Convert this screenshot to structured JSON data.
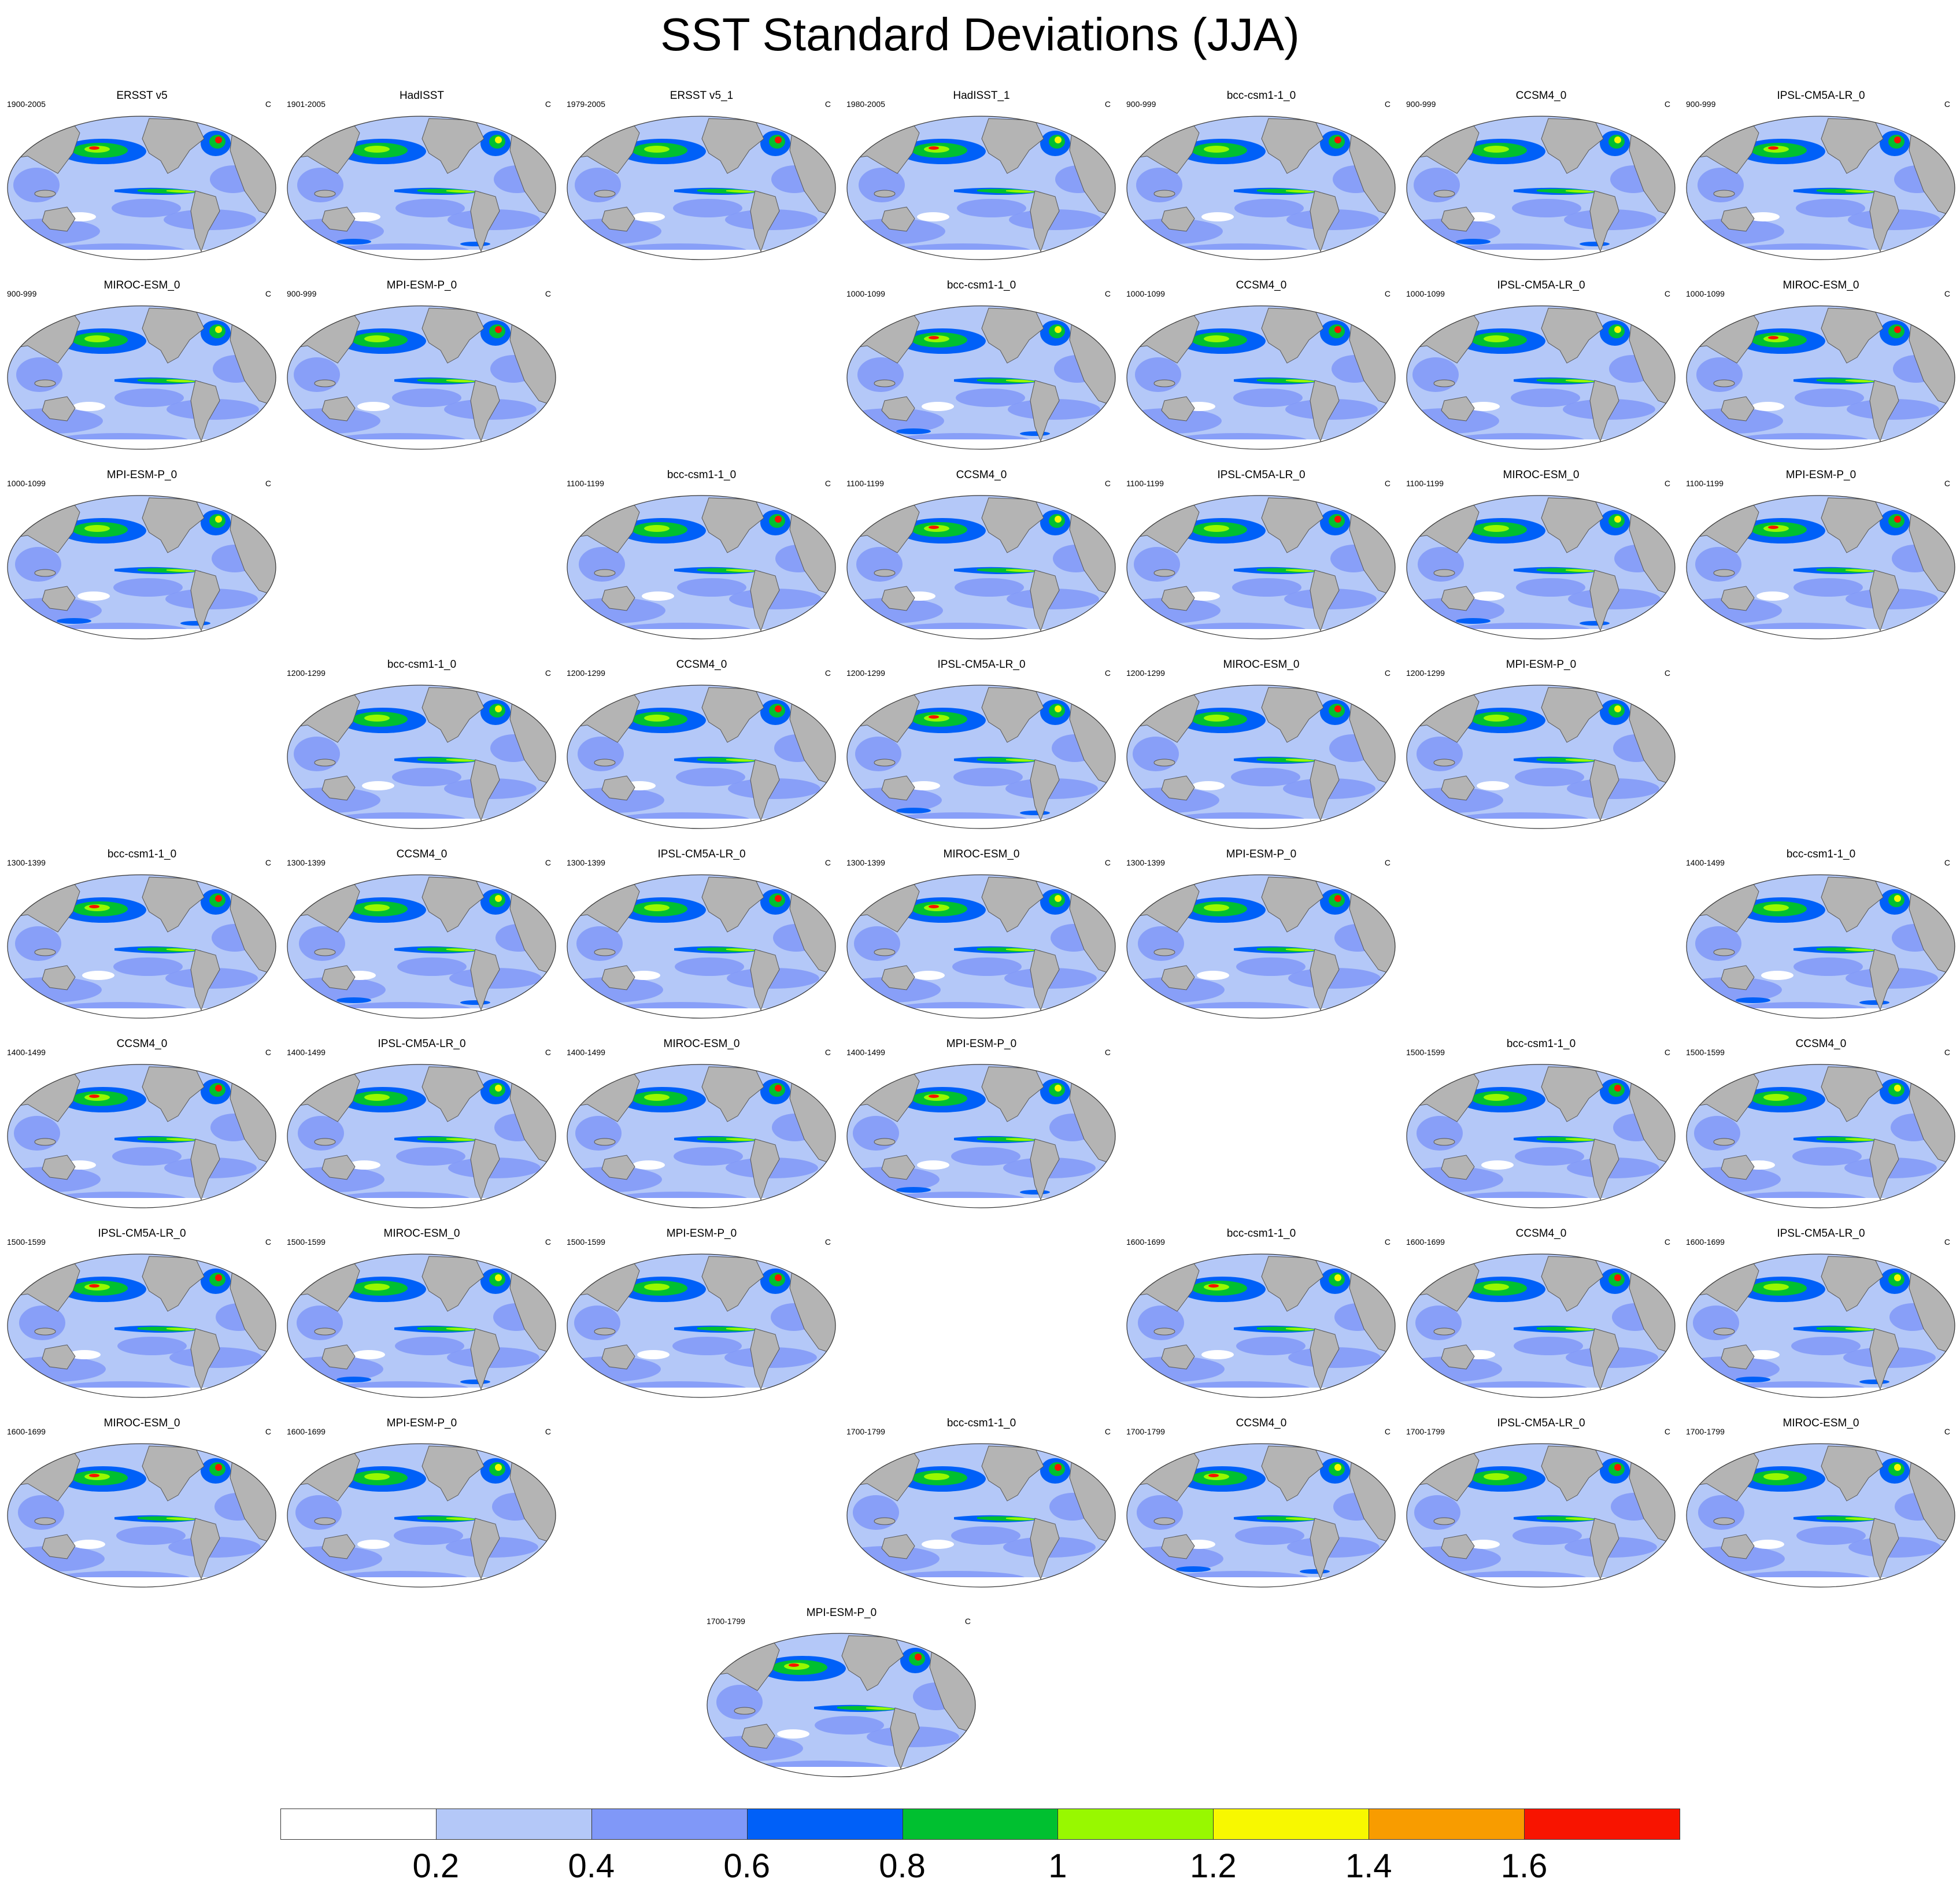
{
  "title": "SST Standard Deviations (JJA)",
  "units": "C",
  "panels": [
    {
      "row": 0,
      "col": 0,
      "name": "ERSST v5",
      "period": "1900-2005"
    },
    {
      "row": 0,
      "col": 1,
      "name": "HadISST",
      "period": "1901-2005"
    },
    {
      "row": 0,
      "col": 2,
      "name": "ERSST v5_1",
      "period": "1979-2005"
    },
    {
      "row": 0,
      "col": 3,
      "name": "HadISST_1",
      "period": "1980-2005"
    },
    {
      "row": 0,
      "col": 4,
      "name": "bcc-csm1-1_0",
      "period": "900-999"
    },
    {
      "row": 0,
      "col": 5,
      "name": "CCSM4_0",
      "period": "900-999"
    },
    {
      "row": 0,
      "col": 6,
      "name": "IPSL-CM5A-LR_0",
      "period": "900-999"
    },
    {
      "row": 1,
      "col": 0,
      "name": "MIROC-ESM_0",
      "period": "900-999"
    },
    {
      "row": 1,
      "col": 1,
      "name": "MPI-ESM-P_0",
      "period": "900-999"
    },
    {
      "row": 1,
      "col": 3,
      "name": "bcc-csm1-1_0",
      "period": "1000-1099"
    },
    {
      "row": 1,
      "col": 4,
      "name": "CCSM4_0",
      "period": "1000-1099"
    },
    {
      "row": 1,
      "col": 5,
      "name": "IPSL-CM5A-LR_0",
      "period": "1000-1099"
    },
    {
      "row": 1,
      "col": 6,
      "name": "MIROC-ESM_0",
      "period": "1000-1099"
    },
    {
      "row": 2,
      "col": 0,
      "name": "MPI-ESM-P_0",
      "period": "1000-1099"
    },
    {
      "row": 2,
      "col": 2,
      "name": "bcc-csm1-1_0",
      "period": "1100-1199"
    },
    {
      "row": 2,
      "col": 3,
      "name": "CCSM4_0",
      "period": "1100-1199"
    },
    {
      "row": 2,
      "col": 4,
      "name": "IPSL-CM5A-LR_0",
      "period": "1100-1199"
    },
    {
      "row": 2,
      "col": 5,
      "name": "MIROC-ESM_0",
      "period": "1100-1199"
    },
    {
      "row": 2,
      "col": 6,
      "name": "MPI-ESM-P_0",
      "period": "1100-1199"
    },
    {
      "row": 3,
      "col": 1,
      "name": "bcc-csm1-1_0",
      "period": "1200-1299"
    },
    {
      "row": 3,
      "col": 2,
      "name": "CCSM4_0",
      "period": "1200-1299"
    },
    {
      "row": 3,
      "col": 3,
      "name": "IPSL-CM5A-LR_0",
      "period": "1200-1299"
    },
    {
      "row": 3,
      "col": 4,
      "name": "MIROC-ESM_0",
      "period": "1200-1299"
    },
    {
      "row": 3,
      "col": 5,
      "name": "MPI-ESM-P_0",
      "period": "1200-1299"
    },
    {
      "row": 4,
      "col": 0,
      "name": "bcc-csm1-1_0",
      "period": "1300-1399"
    },
    {
      "row": 4,
      "col": 1,
      "name": "CCSM4_0",
      "period": "1300-1399"
    },
    {
      "row": 4,
      "col": 2,
      "name": "IPSL-CM5A-LR_0",
      "period": "1300-1399"
    },
    {
      "row": 4,
      "col": 3,
      "name": "MIROC-ESM_0",
      "period": "1300-1399"
    },
    {
      "row": 4,
      "col": 4,
      "name": "MPI-ESM-P_0",
      "period": "1300-1399"
    },
    {
      "row": 4,
      "col": 6,
      "name": "bcc-csm1-1_0",
      "period": "1400-1499"
    },
    {
      "row": 5,
      "col": 0,
      "name": "CCSM4_0",
      "period": "1400-1499"
    },
    {
      "row": 5,
      "col": 1,
      "name": "IPSL-CM5A-LR_0",
      "period": "1400-1499"
    },
    {
      "row": 5,
      "col": 2,
      "name": "MIROC-ESM_0",
      "period": "1400-1499"
    },
    {
      "row": 5,
      "col": 3,
      "name": "MPI-ESM-P_0",
      "period": "1400-1499"
    },
    {
      "row": 5,
      "col": 5,
      "name": "bcc-csm1-1_0",
      "period": "1500-1599"
    },
    {
      "row": 5,
      "col": 6,
      "name": "CCSM4_0",
      "period": "1500-1599"
    },
    {
      "row": 6,
      "col": 0,
      "name": "IPSL-CM5A-LR_0",
      "period": "1500-1599"
    },
    {
      "row": 6,
      "col": 1,
      "name": "MIROC-ESM_0",
      "period": "1500-1599"
    },
    {
      "row": 6,
      "col": 2,
      "name": "MPI-ESM-P_0",
      "period": "1500-1599"
    },
    {
      "row": 6,
      "col": 4,
      "name": "bcc-csm1-1_0",
      "period": "1600-1699"
    },
    {
      "row": 6,
      "col": 5,
      "name": "CCSM4_0",
      "period": "1600-1699"
    },
    {
      "row": 6,
      "col": 6,
      "name": "IPSL-CM5A-LR_0",
      "period": "1600-1699"
    },
    {
      "row": 7,
      "col": 0,
      "name": "MIROC-ESM_0",
      "period": "1600-1699"
    },
    {
      "row": 7,
      "col": 1,
      "name": "MPI-ESM-P_0",
      "period": "1600-1699"
    },
    {
      "row": 7,
      "col": 3,
      "name": "bcc-csm1-1_0",
      "period": "1700-1799"
    },
    {
      "row": 7,
      "col": 4,
      "name": "CCSM4_0",
      "period": "1700-1799"
    },
    {
      "row": 7,
      "col": 5,
      "name": "IPSL-CM5A-LR_0",
      "period": "1700-1799"
    },
    {
      "row": 7,
      "col": 6,
      "name": "MIROC-ESM_0",
      "period": "1700-1799"
    },
    {
      "row": 8,
      "col": 2.5,
      "name": "MPI-ESM-P_0",
      "period": "1700-1799"
    }
  ],
  "colorbar": {
    "colors": [
      "#ffffff",
      "#b4c8f8",
      "#8098f8",
      "#0060f8",
      "#00c030",
      "#98f800",
      "#f8f800",
      "#f89c00",
      "#f81400"
    ],
    "labels": [
      "0.2",
      "0.4",
      "0.6",
      "0.8",
      "1",
      "1.2",
      "1.4",
      "1.6"
    ]
  },
  "colors": {
    "land": "#b4b4b4",
    "ocean_base": "#b4c8f8",
    "coast": "#555555"
  }
}
